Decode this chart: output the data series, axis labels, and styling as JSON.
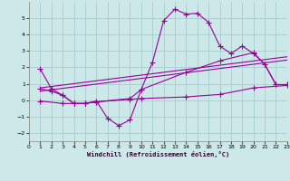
{
  "background_color": "#cce8e8",
  "grid_color": "#aacccc",
  "line_color": "#990099",
  "xlabel": "Windchill (Refroidissement éolien,°C)",
  "xlim": [
    0,
    23
  ],
  "ylim": [
    -2.5,
    6
  ],
  "yticks": [
    -2,
    -1,
    0,
    1,
    2,
    3,
    4,
    5
  ],
  "xticks": [
    0,
    1,
    2,
    3,
    4,
    5,
    6,
    7,
    8,
    9,
    10,
    11,
    12,
    13,
    14,
    15,
    16,
    17,
    18,
    19,
    20,
    21,
    22,
    23
  ],
  "line1_x": [
    1,
    2,
    3,
    4,
    5,
    6,
    7,
    8,
    9,
    10,
    11,
    12,
    13,
    14,
    15,
    16,
    17,
    18,
    19,
    20,
    21,
    22,
    23
  ],
  "line1_y": [
    1.9,
    0.7,
    0.3,
    -0.2,
    -0.2,
    -0.05,
    -1.1,
    -1.55,
    -1.2,
    0.65,
    2.3,
    4.85,
    5.55,
    5.25,
    5.3,
    4.75,
    3.3,
    2.85,
    3.3,
    2.85,
    2.2,
    0.95,
    0.95
  ],
  "line2_x": [
    1,
    2,
    3,
    4,
    5,
    6,
    9,
    10,
    14,
    17,
    20,
    21,
    22,
    23
  ],
  "line2_y": [
    0.7,
    0.55,
    0.3,
    -0.2,
    -0.2,
    -0.1,
    0.1,
    0.65,
    1.7,
    2.4,
    2.9,
    2.2,
    0.95,
    0.95
  ],
  "line3_x": [
    1,
    23
  ],
  "line3_y": [
    0.75,
    2.65
  ],
  "line4_x": [
    1,
    23
  ],
  "line4_y": [
    0.55,
    2.45
  ],
  "line5_x": [
    1,
    3,
    4,
    5,
    6,
    9,
    10,
    14,
    17,
    20,
    23
  ],
  "line5_y": [
    -0.05,
    -0.2,
    -0.2,
    -0.2,
    -0.1,
    0.05,
    0.1,
    0.2,
    0.35,
    0.75,
    0.9
  ]
}
